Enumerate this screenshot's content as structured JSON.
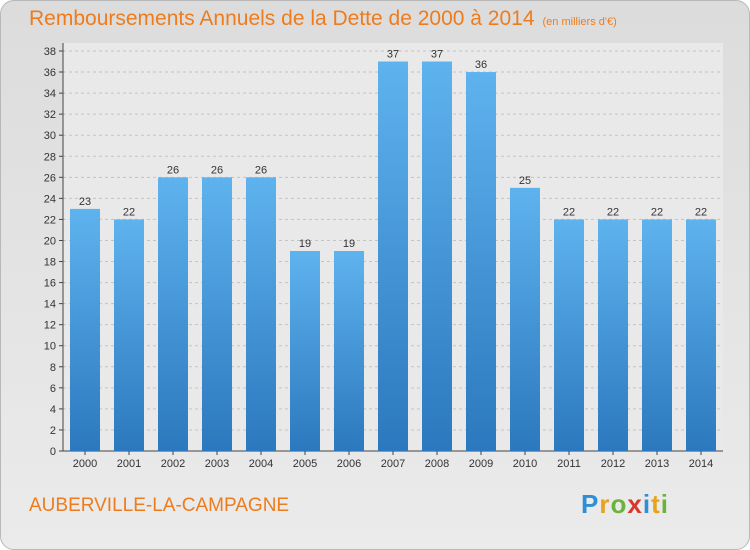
{
  "header": {
    "title": "Remboursements Annuels de la Dette de 2000 à 2014",
    "unit": "(en milliers d'€)"
  },
  "footer": {
    "commune": "AUBERVILLE-LA-CAMPAGNE",
    "logo_letters": [
      "P",
      "r",
      "o",
      "x",
      "i",
      "t",
      "i"
    ],
    "logo_colors": [
      "#2e8fd6",
      "#e8a21c",
      "#6cb33e",
      "#d9352b",
      "#2e8fd6",
      "#e8a21c",
      "#6cb33e"
    ]
  },
  "colors": {
    "accent": "#ee7c1c",
    "bar_top": "#5eb3ee",
    "bar_bottom": "#2c78be"
  },
  "chart_data": {
    "type": "bar",
    "title": "Remboursements Annuels de la Dette de 2000 à 2014",
    "subtitle": "(en milliers d'€)",
    "categories": [
      "2000",
      "2001",
      "2002",
      "2003",
      "2004",
      "2005",
      "2006",
      "2007",
      "2008",
      "2009",
      "2010",
      "2011",
      "2012",
      "2013",
      "2014"
    ],
    "values": [
      23,
      22,
      26,
      26,
      26,
      19,
      19,
      37,
      37,
      36,
      25,
      22,
      22,
      22,
      22
    ],
    "ylim": [
      0,
      38
    ],
    "yticks": [
      0,
      2,
      4,
      6,
      8,
      10,
      12,
      14,
      16,
      18,
      20,
      22,
      24,
      26,
      28,
      30,
      32,
      34,
      36,
      38
    ],
    "grid": true,
    "xlabel": "",
    "ylabel": ""
  }
}
